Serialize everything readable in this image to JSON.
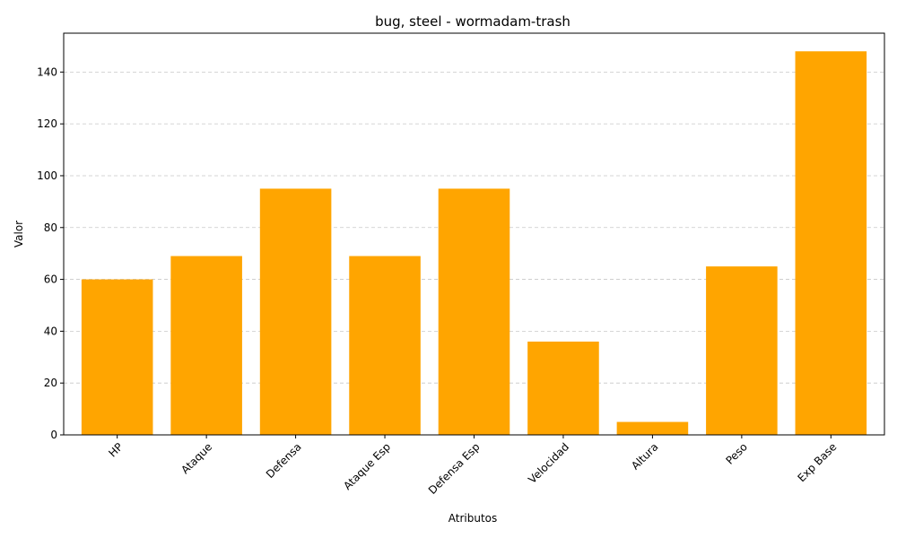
{
  "chart_data": {
    "type": "bar",
    "title": "bug, steel - wormadam-trash",
    "xlabel": "Atributos",
    "ylabel": "Valor",
    "categories": [
      "HP",
      "Ataque",
      "Defensa",
      "Ataque Esp",
      "Defensa Esp",
      "Velocidad",
      "Altura",
      "Peso",
      "Exp Base"
    ],
    "values": [
      60,
      69,
      95,
      69,
      95,
      36,
      5,
      65,
      148
    ],
    "ylim": [
      0,
      155
    ],
    "yticks": [
      0,
      20,
      40,
      60,
      80,
      100,
      120,
      140
    ],
    "grid": "y, dashed",
    "bar_color": "#ffa500",
    "legend": "none"
  }
}
